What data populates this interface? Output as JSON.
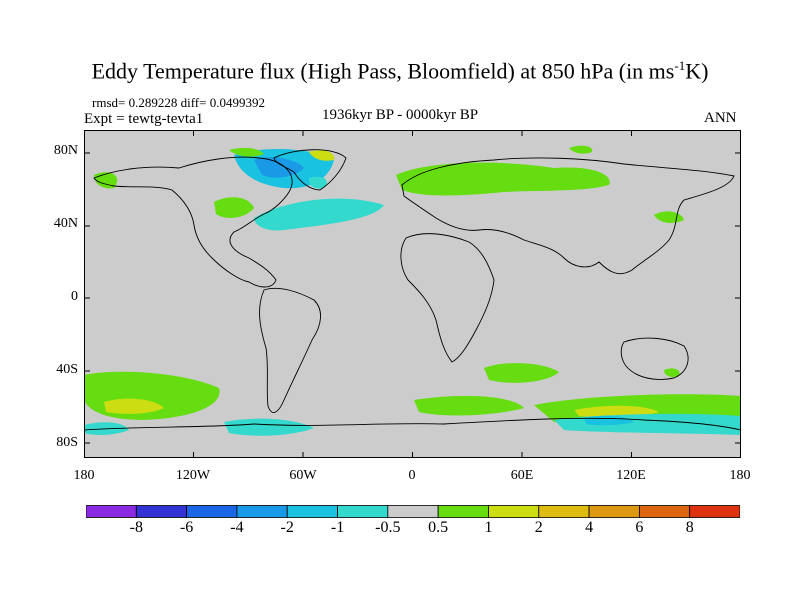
{
  "title": "Eddy Temperature flux (High Pass, Bloomfield) at 850 hPa (in ms",
  "title_sup": "-1",
  "title_end": "K)",
  "rmsd_line": "rmsd= 0.289228 diff= 0.0499392",
  "expt_line": "Expt = tewtg-tevta1",
  "period": "1936kyr BP - 0000kyr BP",
  "season": "ANN",
  "lat_labels": [
    "80N",
    "40N",
    "0",
    "40S",
    "80S"
  ],
  "lon_labels": [
    "180",
    "120W",
    "60W",
    "0",
    "60E",
    "120E",
    "180"
  ],
  "colorbar": {
    "labels": [
      "-8",
      "-6",
      "-4",
      "-2",
      "-1",
      "-0.5",
      "0.5",
      "1",
      "2",
      "4",
      "6",
      "8"
    ],
    "colors": [
      "#8a2be2",
      "#3333d4",
      "#1a66e6",
      "#1a99e6",
      "#19c2e0",
      "#33d9cc",
      "#cccccc",
      "#66dd11",
      "#ccdd11",
      "#ddbb11",
      "#dd9911",
      "#dd6611",
      "#dd3311"
    ]
  },
  "colors": {
    "land_ocean_neutral": "#cccccc",
    "coast": "#000000",
    "positive_1": "#66dd11",
    "positive_2": "#ccdd11",
    "negative_1": "#33d9cc",
    "negative_2": "#19c2e0",
    "negative_3": "#1a99e6"
  }
}
